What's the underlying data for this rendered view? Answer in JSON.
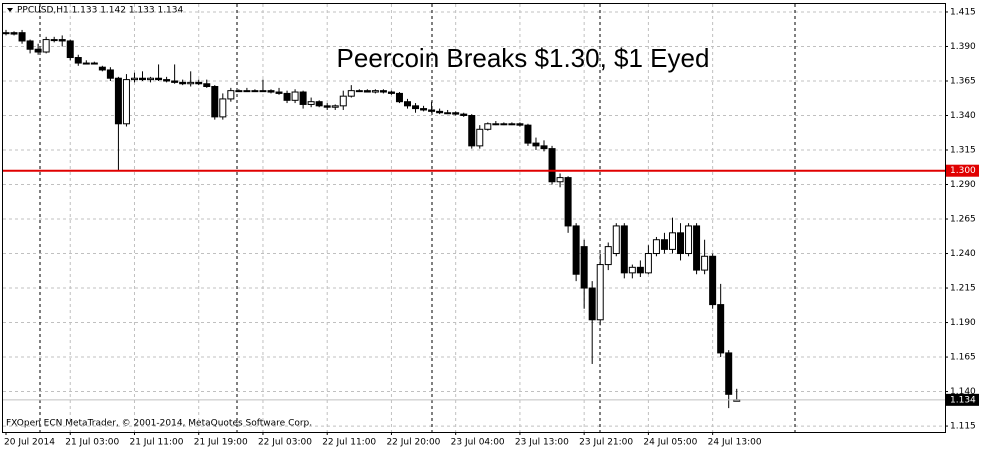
{
  "chart_data": {
    "type": "candlestick",
    "header": "PPCUSD,H1  1.133 1.142 1.133 1.134",
    "title": "Peercoin Breaks $1.30, $1 Eyed",
    "footer": "FXOpen ECN MetaTrader, © 2001-2014, MetaQuotes Software Corp.",
    "categories": [
      "20 Jul 2014",
      null,
      null,
      null,
      null,
      null,
      null,
      null,
      "21 Jul 03:00",
      null,
      null,
      null,
      null,
      null,
      null,
      null,
      "21 Jul 11:00",
      null,
      null,
      null,
      null,
      null,
      null,
      null,
      "21 Jul 19:00",
      null,
      null,
      null,
      null,
      null,
      null,
      null,
      "22 Jul 03:00",
      null,
      null,
      null,
      null,
      null,
      null,
      null,
      "22 Jul 11:00",
      null,
      null,
      null,
      null,
      null,
      null,
      null,
      "22 Jul 20:00",
      null,
      null,
      null,
      null,
      null,
      null,
      null,
      "23 Jul 04:00",
      null,
      null,
      null,
      null,
      null,
      null,
      null,
      "23 Jul 13:00",
      null,
      null,
      null,
      null,
      null,
      null,
      null,
      "23 Jul 21:00",
      null,
      null,
      null,
      null,
      null,
      null,
      null,
      "24 Jul 05:00",
      null,
      null,
      null,
      null,
      null,
      null,
      null,
      "24 Jul 13:00",
      null,
      null,
      null
    ],
    "open": [
      1.4,
      1.4,
      1.4,
      1.394,
      1.388,
      1.386,
      1.395,
      1.395,
      1.394,
      1.382,
      1.378,
      1.378,
      1.375,
      1.373,
      1.367,
      1.334,
      1.366,
      1.367,
      1.366,
      1.367,
      1.366,
      1.365,
      1.364,
      1.363,
      1.364,
      1.363,
      1.361,
      1.339,
      1.352,
      1.358,
      1.358,
      1.358,
      1.358,
      1.358,
      1.357,
      1.356,
      1.351,
      1.357,
      1.348,
      1.35,
      1.347,
      1.346,
      1.347,
      1.354,
      1.358,
      1.358,
      1.357,
      1.358,
      1.357,
      1.356,
      1.35,
      1.347,
      1.345,
      1.344,
      1.343,
      1.342,
      1.342,
      1.341,
      1.34,
      1.318,
      1.33,
      1.334,
      1.334,
      1.334,
      1.334,
      1.333,
      1.32,
      1.318,
      1.316,
      1.292,
      1.295,
      1.26,
      1.245,
      1.215,
      1.192,
      1.232,
      1.24,
      1.26,
      1.226,
      1.23,
      1.226,
      1.24,
      1.25,
      1.243,
      1.255,
      1.24,
      1.26,
      1.228,
      1.238,
      1.203,
      1.168,
      1.133
    ],
    "high": [
      1.402,
      1.401,
      1.402,
      1.395,
      1.392,
      1.397,
      1.397,
      1.398,
      1.395,
      1.384,
      1.38,
      1.379,
      1.376,
      1.375,
      1.368,
      1.37,
      1.371,
      1.372,
      1.368,
      1.377,
      1.368,
      1.377,
      1.366,
      1.372,
      1.366,
      1.366,
      1.362,
      1.356,
      1.36,
      1.359,
      1.36,
      1.359,
      1.366,
      1.359,
      1.36,
      1.358,
      1.359,
      1.358,
      1.353,
      1.351,
      1.349,
      1.348,
      1.358,
      1.362,
      1.359,
      1.359,
      1.359,
      1.359,
      1.358,
      1.357,
      1.352,
      1.349,
      1.347,
      1.35,
      1.345,
      1.344,
      1.343,
      1.342,
      1.341,
      1.333,
      1.335,
      1.336,
      1.335,
      1.335,
      1.335,
      1.334,
      1.324,
      1.322,
      1.318,
      1.298,
      1.296,
      1.262,
      1.25,
      1.22,
      1.24,
      1.248,
      1.262,
      1.262,
      1.232,
      1.235,
      1.246,
      1.252,
      1.255,
      1.266,
      1.262,
      1.262,
      1.262,
      1.25,
      1.24,
      1.218,
      1.17,
      1.142
    ],
    "low": [
      1.398,
      1.398,
      1.392,
      1.385,
      1.384,
      1.385,
      1.393,
      1.39,
      1.38,
      1.376,
      1.377,
      1.377,
      1.372,
      1.365,
      1.3,
      1.332,
      1.364,
      1.365,
      1.364,
      1.365,
      1.364,
      1.363,
      1.362,
      1.361,
      1.362,
      1.36,
      1.337,
      1.337,
      1.35,
      1.357,
      1.357,
      1.357,
      1.357,
      1.356,
      1.355,
      1.349,
      1.349,
      1.345,
      1.346,
      1.346,
      1.344,
      1.344,
      1.344,
      1.353,
      1.357,
      1.357,
      1.356,
      1.356,
      1.355,
      1.349,
      1.345,
      1.342,
      1.343,
      1.342,
      1.341,
      1.341,
      1.34,
      1.339,
      1.316,
      1.316,
      1.329,
      1.333,
      1.333,
      1.333,
      1.332,
      1.318,
      1.315,
      1.314,
      1.29,
      1.288,
      1.255,
      1.22,
      1.2,
      1.16,
      1.188,
      1.228,
      1.238,
      1.222,
      1.222,
      1.223,
      1.225,
      1.238,
      1.24,
      1.24,
      1.235,
      1.238,
      1.225,
      1.225,
      1.2,
      1.165,
      1.128,
      1.133
    ],
    "close": [
      1.4,
      1.399,
      1.394,
      1.388,
      1.386,
      1.395,
      1.395,
      1.394,
      1.382,
      1.378,
      1.378,
      1.378,
      1.373,
      1.367,
      1.334,
      1.366,
      1.367,
      1.366,
      1.367,
      1.366,
      1.365,
      1.364,
      1.363,
      1.364,
      1.363,
      1.361,
      1.339,
      1.352,
      1.358,
      1.358,
      1.358,
      1.358,
      1.358,
      1.357,
      1.356,
      1.351,
      1.357,
      1.348,
      1.35,
      1.347,
      1.346,
      1.347,
      1.354,
      1.358,
      1.358,
      1.357,
      1.358,
      1.357,
      1.356,
      1.35,
      1.347,
      1.345,
      1.344,
      1.343,
      1.342,
      1.342,
      1.341,
      1.34,
      1.318,
      1.33,
      1.334,
      1.334,
      1.334,
      1.334,
      1.333,
      1.32,
      1.318,
      1.316,
      1.292,
      1.295,
      1.26,
      1.225,
      1.215,
      1.192,
      1.232,
      1.245,
      1.26,
      1.226,
      1.23,
      1.226,
      1.24,
      1.25,
      1.243,
      1.255,
      1.24,
      1.26,
      1.228,
      1.238,
      1.203,
      1.168,
      1.138,
      1.134
    ],
    "ylim": [
      1.1107,
      1.4215
    ],
    "yticks": [
      1.415,
      {
        "value": 1.39,
        "label": "1.390"
      },
      1.365,
      {
        "value": 1.34,
        "label": "1.340"
      },
      1.315,
      {
        "value": 1.29,
        "label": "1.290"
      },
      1.265,
      {
        "value": 1.24,
        "label": "1.240"
      },
      1.215,
      {
        "value": 1.19,
        "label": "1.190"
      },
      1.165,
      {
        "value": 1.14,
        "label": "1.140"
      },
      1.115
    ],
    "grid": true,
    "bull_color": "#ffffff",
    "bear_color": "#000000",
    "price_line": {
      "value": 1.3,
      "label": "1.300",
      "color": "#e00000"
    },
    "last_price": 1.134
  }
}
